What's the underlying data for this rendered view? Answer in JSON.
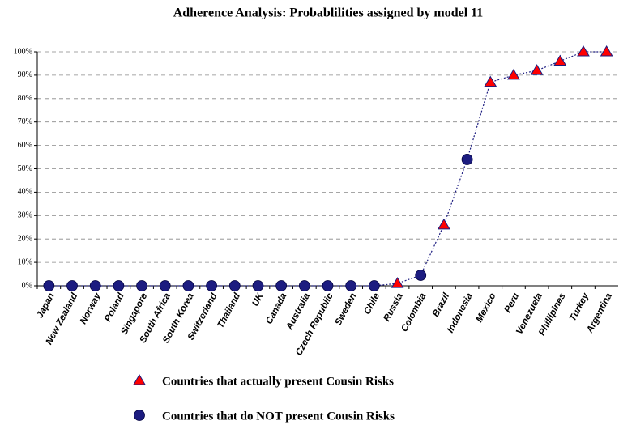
{
  "chart_data": {
    "type": "scatter",
    "title": "Adherence Analysis: Probablilities assigned by model 11",
    "categories": [
      "Japan",
      "New Zealand",
      "Norway",
      "Poland",
      "Singapore",
      "South Africa",
      "South Korea",
      "Switzerland",
      "Thailand",
      "UK",
      "Canada",
      "Australia",
      "Czech Republic",
      "Sweden",
      "Chile",
      "Russia",
      "Colombia",
      "Brazil",
      "Indonesia",
      "Mexico",
      "Peru",
      "Venezuela",
      "Phillipines",
      "Turkey",
      "Argentina"
    ],
    "series": [
      {
        "name": "Countries that actually present Cousin Risks",
        "color": "#ff0000",
        "marker": "triangle",
        "values": [
          null,
          null,
          null,
          null,
          null,
          null,
          null,
          null,
          null,
          null,
          null,
          null,
          null,
          null,
          null,
          1,
          null,
          26,
          null,
          87,
          90,
          92,
          96,
          100,
          100
        ]
      },
      {
        "name": "Countries that do NOT present Cousin Risks",
        "color": "#1c1c80",
        "marker": "circle",
        "values": [
          0,
          0,
          0,
          0,
          0,
          0,
          0,
          0,
          0,
          0,
          0,
          0,
          0,
          0,
          0,
          null,
          4.5,
          null,
          54,
          null,
          null,
          null,
          null,
          null,
          null
        ]
      }
    ],
    "line_color": "#1c1c80",
    "ylim": [
      0,
      100
    ],
    "yticks": [
      {
        "value": 0,
        "label": "0%"
      },
      {
        "value": 10,
        "label": "10%"
      },
      {
        "value": 20,
        "label": "20%"
      },
      {
        "value": 30,
        "label": "30%"
      },
      {
        "value": 40,
        "label": "40%"
      },
      {
        "value": 50,
        "label": "50%"
      },
      {
        "value": 60,
        "label": "60%"
      },
      {
        "value": 70,
        "label": "70%"
      },
      {
        "value": 80,
        "label": "80%"
      },
      {
        "value": 90,
        "label": "90%"
      },
      {
        "value": 100,
        "label": "100%"
      }
    ],
    "grid": true
  }
}
